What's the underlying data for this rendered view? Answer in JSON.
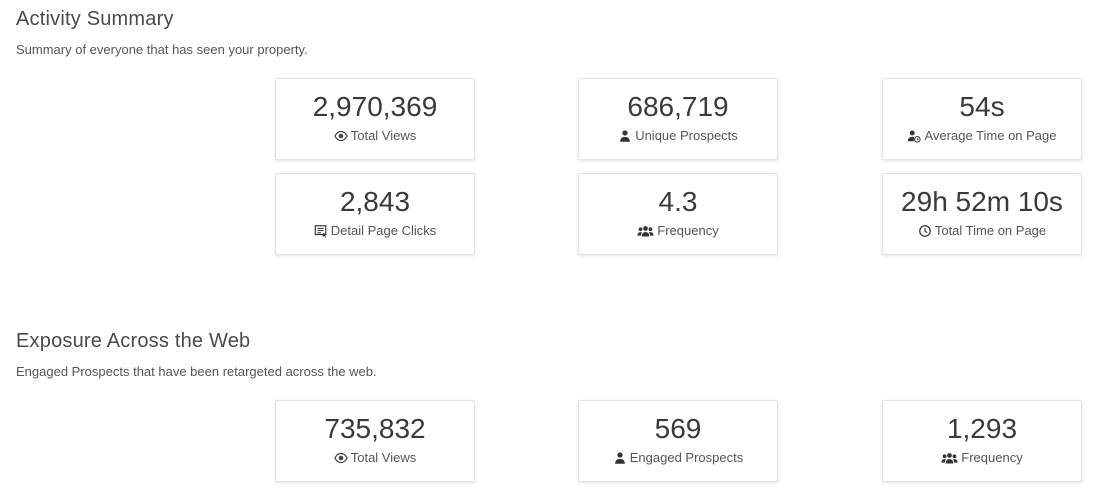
{
  "activity": {
    "title": "Activity Summary",
    "subtitle": "Summary of everyone that has seen your property.",
    "cards": [
      {
        "value": "2,970,369",
        "label": "Total Views",
        "icon": "eye-icon"
      },
      {
        "value": "686,719",
        "label": "Unique Prospects",
        "icon": "person-icon"
      },
      {
        "value": "54s",
        "label": "Average Time on Page",
        "icon": "person-clock-icon"
      },
      {
        "value": "2,843",
        "label": "Detail Page Clicks",
        "icon": "document-click-icon"
      },
      {
        "value": "4.3",
        "label": "Frequency",
        "icon": "group-icon"
      },
      {
        "value": "29h 52m 10s",
        "label": "Total Time on Page",
        "icon": "clock-icon"
      }
    ]
  },
  "exposure": {
    "title": "Exposure Across the Web",
    "subtitle": "Engaged Prospects that have been retargeted across the web.",
    "cards": [
      {
        "value": "735,832",
        "label": "Total Views",
        "icon": "eye-icon"
      },
      {
        "value": "569",
        "label": "Engaged Prospects",
        "icon": "person-icon"
      },
      {
        "value": "1,293",
        "label": "Frequency",
        "icon": "group-icon"
      }
    ]
  }
}
